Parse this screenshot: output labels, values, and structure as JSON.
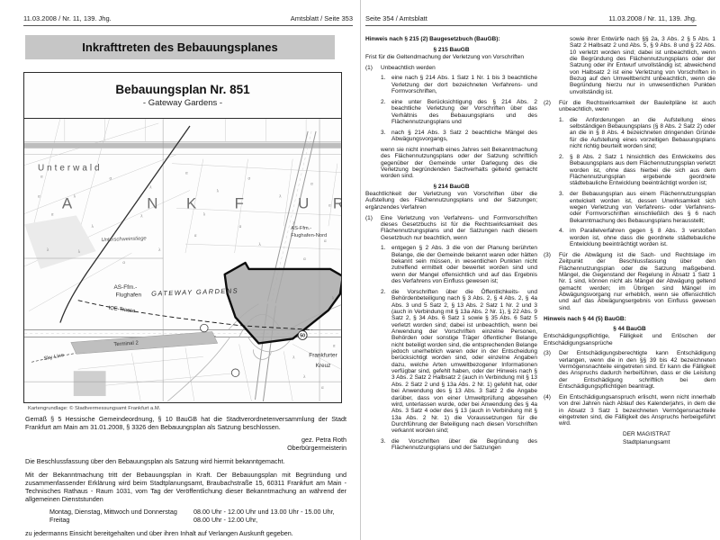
{
  "colors": {
    "title_bar_bg": "#c6c6c6",
    "plan_area_fill": "#a9a9a9",
    "plan_outline": "#0d0d0d",
    "ink": "#1a1a1a"
  },
  "left_page": {
    "header_left": "11.03.2008 / Nr. 11, 139. Jhg.",
    "header_right": "Amtsblatt / Seite 353",
    "title_banner": "Inkrafttreten des Bebauungsplanes",
    "map": {
      "title": "Bebauungsplan Nr. 851",
      "subtitle": "- Gateway Gardens -",
      "credit": "Kartengrundlage: © Stadtvermessungsamt Frankfurt a.M.",
      "labels": {
        "unterwald": "Unterwald",
        "city_letters": [
          "A",
          "N",
          "K",
          "F",
          "U",
          "R"
        ],
        "unterschweinstiege": "Unterschweinstiege",
        "as_nord_line1": "AS-Ffm.-",
        "as_nord_line2": "Flughafen-Nord",
        "as_plan_line1": "AS-Ffm.-",
        "as_plan_line2": "Flughafen",
        "gateway": "GATEWAY GARDENS",
        "ice_trasse": "ICE-Trasse",
        "terminal": "Terminal 2",
        "skyline": "Sky Line",
        "kreuz_line1": "Frankfurter",
        "kreuz_line2": "Kreuz",
        "badge_50": "50"
      }
    },
    "para_beschluss": "Gemäß § 5 Hessische Gemeindeordnung, § 10 BauGB hat die Stadtverordnetenversammlung der Stadt Frankfurt am Main am 31.01.2008, § 3326 den Bebauungsplan als Satzung beschlossen.",
    "sig_name": "gez. Petra Roth",
    "sig_role": "Oberbürgermeisterin",
    "para_bekannt": "Die Beschlussfassung über den Bebauungsplan als Satzung wird hiermit bekanntgemacht.",
    "para_kraft": "Mit der Bekanntmachung tritt der Bebauungsplan in Kraft. Der Bebauungsplan mit Begründung und zusammenfassender Erklärung wird beim Stadtplanungsamt, Braubachstraße 15, 60311 Frankfurt am Main - Technisches Rathaus - Raum 1031, vom Tag der Veröffentlichung dieser Bekanntmachung an während der allgemeinen Dienststunden",
    "hours": [
      {
        "day": "Montag, Dienstag, Mittwoch und Donnerstag",
        "time": "08.00 Uhr - 12.00 Uhr und 13.00 Uhr - 15.00 Uhr,"
      },
      {
        "day": "Freitag",
        "time": "08.00 Uhr - 12.00 Uhr,"
      }
    ],
    "para_einsicht": "zu jedermanns Einsicht bereitgehalten und über ihren Inhalt auf Verlangen Auskunft gegeben."
  },
  "right_page": {
    "header_left": "Seite 354 / Amtsblatt",
    "header_right": "11.03.2008 / Nr. 11, 139. Jhg.",
    "col1": [
      {
        "style": "b-hleft",
        "text": "Hinweis nach § 215 (2) Baugesetzbuch (BauGB):"
      },
      {
        "style": "b-hcenter",
        "text": "§ 215 BauGB"
      },
      {
        "style": "b-plain",
        "text": "Frist für die Geltendmachung der Verletzung von Vorschriften"
      },
      {
        "style": "b-num1",
        "num": "(1)",
        "text": "Unbeachtlich werden"
      },
      {
        "style": "b-num2",
        "num": "1.",
        "text": "eine nach § 214 Abs. 1 Satz 1 Nr. 1 bis 3 beachtliche Verletzung der dort bezeichneten Verfahrens- und Formvorschriften,"
      },
      {
        "style": "b-num2",
        "num": "2.",
        "text": "eine unter Berücksichtigung des § 214 Abs. 2 beachtliche Verletzung der Vorschriften über das Verhältnis des Bebauungsplans und des Flächennutzungsplans und"
      },
      {
        "style": "b-num2",
        "num": "3.",
        "text": "nach § 214 Abs. 3 Satz 2 beachtliche Mängel des Abwägungsvorgangs,"
      },
      {
        "style": "b-indent1",
        "text": "wenn sie nicht innerhalb eines Jahres seit Bekanntmachung des Flächennutzungsplans oder der Satzung schriftlich gegenüber der Gemeinde unter Darlegung des die Verletzung begründenden Sachverhalts geltend gemacht worden sind."
      },
      {
        "style": "b-hcenter",
        "text": "§ 214 BauGB"
      },
      {
        "style": "b-plain",
        "text": "Beachtlichkeit der Verletzung von Vorschriften über die Aufstellung des Flächennutzungsplans und der Satzungen; ergänzendes Verfahren"
      },
      {
        "style": "b-num1",
        "num": "(1)",
        "text": "Eine Verletzung von Verfahrens- und Formvorschriften dieses Gesetzbuchs ist für die Rechtswirksamkeit des Flächennutzungsplans und der Satzungen nach diesem Gesetzbuch nur beachtlich, wenn"
      },
      {
        "style": "b-num2",
        "num": "1.",
        "text": "entgegen § 2 Abs. 3 die von der Planung berührten Belange, die der Gemeinde bekannt waren oder hätten bekannt sein müssen, in wesentlichen Punkten nicht zutreffend ermittelt oder bewertet worden sind und wenn der Mangel offensichtlich und auf das Ergebnis des Verfahrens von Einfluss gewesen ist;"
      },
      {
        "style": "b-num2",
        "num": "2.",
        "text": "die Vorschriften über die Öffentlichkeits- und Behördenbeteiligung nach § 3 Abs. 2, § 4 Abs. 2, § 4a Abs. 3 und 5 Satz 2, § 13 Abs. 2 Satz 1 Nr. 2 und 3 (auch in Verbindung mit § 13a Abs. 2 Nr. 1), § 22 Abs. 9 Satz 2, § 34 Abs. 6 Satz 1 sowie § 35 Abs. 6 Satz 5 verletzt worden sind; dabei ist unbeachtlich, wenn bei Anwendung der Vorschriften einzelne Personen, Behörden oder sonstige Träger öffentlicher Belange nicht beteiligt worden sind, die entsprechenden Belange jedoch unerheblich waren oder in der Entscheidung berücksichtigt worden sind, oder einzelne Angaben dazu, welche Arten umweltbezogener Informationen verfügbar sind, gefehlt haben, oder der Hinweis nach § 3 Abs. 2 Satz 2 Halbsatz 2 (auch in Verbindung mit § 13 Abs. 2 Satz 2 und § 13a Abs. 2 Nr. 1) gefehlt hat, oder bei Anwendung des § 13 Abs. 3 Satz 2 die Angabe darüber, dass von einer Umweltprüfung abgesehen wird, unterlassen wurde, oder bei Anwendung des § 4a Abs. 3 Satz 4 oder des § 13 (auch in Verbindung mit § 13a Abs. 2 Nr. 1) die Voraussetzungen für die Durchführung der Beteiligung nach diesen Vorschriften verkannt worden sind;"
      },
      {
        "style": "b-num2",
        "num": "3.",
        "text": "die Vorschriften über die Begründung des Flächennutzungsplans und der Satzungen"
      }
    ],
    "col2": [
      {
        "style": "b-cont",
        "text": "sowie ihrer Entwürfe nach §§ 2a, 3 Abs. 2 § 5 Abs. 1 Satz 2 Halbsatz 2 und Abs. 5, § 9 Abs. 8 und § 22 Abs. 10 verletzt worden sind; dabei ist unbeachtlich, wenn die Begründung des Flächennutzungsplans oder der Satzung oder ihr Entwurf unvollständig ist; abweichend von Halbsatz 2 ist eine Verletzung von Vorschriften in Bezug auf den Umweltbericht unbeachtlich, wenn die Begründung hierzu nur in unwesentlichen Punkten unvollständig ist."
      },
      {
        "style": "b-num1",
        "num": "(2)",
        "text": "Für die Rechtswirksamkeit der Bauleitpläne ist auch unbeachtlich, wenn"
      },
      {
        "style": "b-num2",
        "num": "1.",
        "text": "die Anforderungen an die Aufstellung eines selbständigen Bebauungsplans (§ 8 Abs. 2 Satz 2) oder an die in § 8 Abs. 4 bezeichneten dringenden Gründe für die Aufstellung eines vorzeitigen Bebauungsplans nicht richtig beurteilt worden sind;"
      },
      {
        "style": "b-num2",
        "num": "2.",
        "text": "§ 8 Abs. 2 Satz 1 hinsichtlich des Entwickelns des Bebauungsplans aus dem Flächennutzungsplan verletzt worden ist, ohne dass hierbei die sich aus dem Flächennutzungsplan ergebende geordnete städtebauliche Entwicklung beeinträchtigt worden ist;"
      },
      {
        "style": "b-num2",
        "num": "3.",
        "text": "der Bebauungsplan aus einem Flächennutzungsplan entwickelt worden ist, dessen Unwirksamkeit sich wegen Verletzung von Verfahrens- oder Verfahrens- oder Formvorschriften einschließlich des § 6 nach Bekanntmachung des Bebauungsplans herausstellt;"
      },
      {
        "style": "b-num2",
        "num": "4.",
        "text": "im Parallelverfahren gegen § 8 Abs. 3 verstoßen worden ist, ohne dass die geordnete städtebauliche Entwicklung beeinträchtigt worden ist."
      },
      {
        "style": "b-num1",
        "num": "(3)",
        "text": "Für die Abwägung ist die Sach- und Rechtslage im Zeitpunkt der Beschlussfassung über den Flächennutzungsplan oder die Satzung maßgebend. Mängel, die Gegenstand der Regelung in Absatz 1 Satz 1 Nr. 1 sind, können nicht als Mängel der Abwägung geltend gemacht werden; im Übrigen sind Mängel im Abwägungsvorgang nur erheblich, wenn sie offensichtlich und auf das Abwägungsergebnis von Einfluss gewesen sind."
      },
      {
        "style": "b-hleft",
        "text": "Hinweis nach § 44 (5) BauGB:"
      },
      {
        "style": "b-hcenter",
        "text": "§ 44 BauGB"
      },
      {
        "style": "b-plain",
        "text": "Entschädigungspflichtige, Fälligkeit und Erlöschen der Entschädigungsansprüche"
      },
      {
        "style": "b-num1",
        "num": "(3)",
        "text": "Der Entschädigungsberechtigte kann Entschädigung verlangen, wenn die in den §§ 39 bis 42 bezeichneten Vermögensnachteile eingetreten sind. Er kann die Fälligkeit des Anspruchs dadurch herbeiführen, dass er die Leistung der Entschädigung schriftlich bei dem Entschädigungspflichtigen beantragt."
      },
      {
        "style": "b-num1",
        "num": "(4)",
        "text": "Ein Entschädigungsanspruch erlischt, wenn nicht innerhalb von drei Jahren nach Ablauf des Kalenderjahrs, in dem die in Absatz 3 Satz 1 bezeichneten Vermögensnachteile eingetreten sind, die Fälligkeit des Anspruchs herbeigeführt wird."
      },
      {
        "style": "b-sig",
        "text": "DER MAGISTRAT"
      },
      {
        "style": "b-sig",
        "text": "Stadtplanungsamt"
      }
    ]
  }
}
